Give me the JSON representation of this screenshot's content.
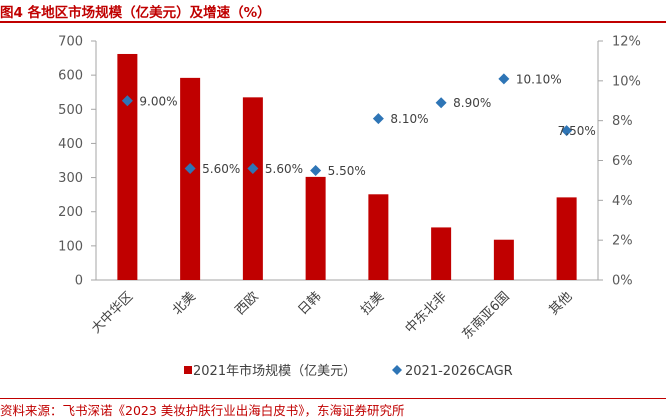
{
  "header": {
    "title": "图4  各地区市场规模（亿美元）及增速（%）"
  },
  "footer": {
    "source": "资料来源：飞书深诺《2023 美妆护肤行业出海白皮书》，东海证券研究所"
  },
  "chart_data": {
    "type": "bar",
    "categories": [
      "大中华区",
      "北美",
      "西欧",
      "日韩",
      "拉美",
      "中东北非",
      "东南亚6国",
      "其他"
    ],
    "series": [
      {
        "name": "2021年市场规模（亿美元）",
        "kind": "bar",
        "axis": "left",
        "values": [
          662,
          592,
          535,
          302,
          251,
          154,
          118,
          242
        ],
        "color": "#c00000"
      },
      {
        "name": "2021-2026CAGR",
        "kind": "scatter",
        "axis": "right",
        "values": [
          9.0,
          5.6,
          5.6,
          5.5,
          8.1,
          8.9,
          10.1,
          7.5
        ],
        "labels": [
          "9.00%",
          "5.60%",
          "5.60%",
          "5.50%",
          "8.10%",
          "8.90%",
          "10.10%",
          "7.50%"
        ],
        "color": "#2e75b6",
        "highlight_color": "#ff0000",
        "highlight_index": 6
      }
    ],
    "y_left": {
      "ylim": [
        0,
        700
      ],
      "ticks": [
        "0",
        "100",
        "200",
        "300",
        "400",
        "500",
        "600",
        "700"
      ]
    },
    "y_right": {
      "ylim": [
        0,
        12
      ],
      "ticks": [
        "0%",
        "2%",
        "4%",
        "6%",
        "8%",
        "10%",
        "12%"
      ]
    },
    "grid": false,
    "legend_position": "bottom"
  }
}
